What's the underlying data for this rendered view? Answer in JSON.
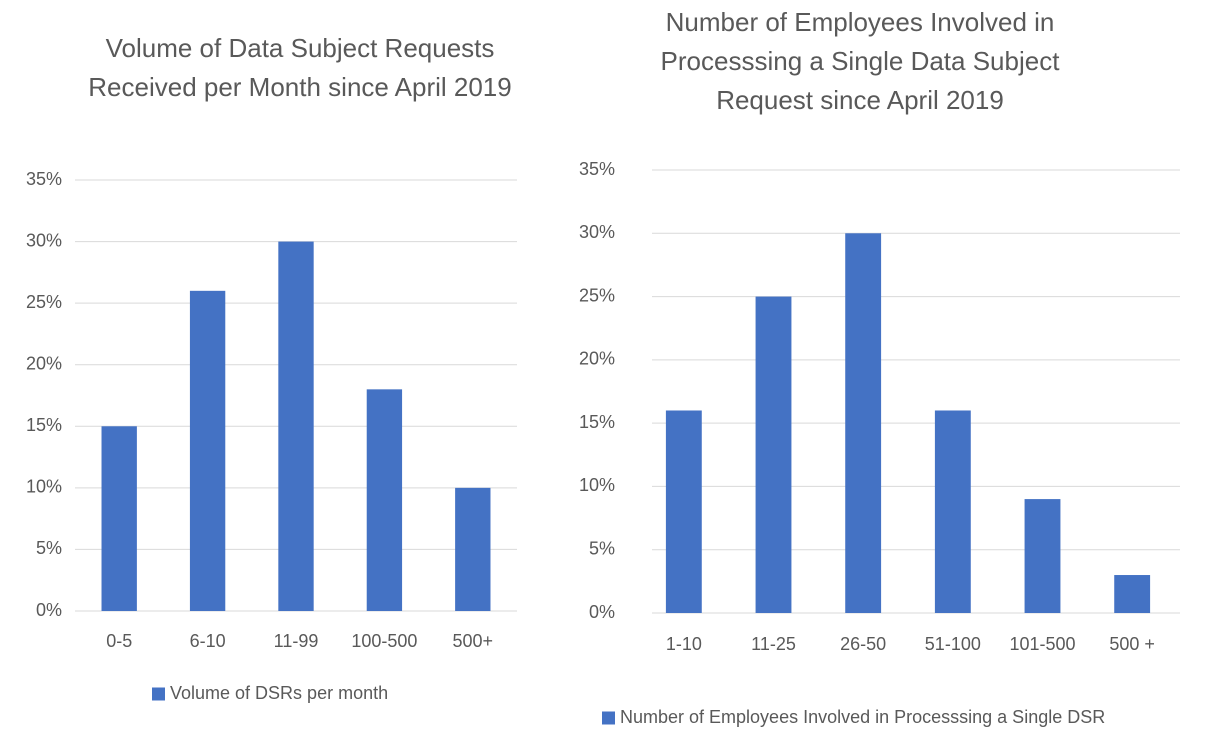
{
  "chart_data": [
    {
      "type": "bar",
      "title": "Volume of Data Subject Requests Received per Month since April 2019",
      "categories": [
        "0-5",
        "6-10",
        "11-99",
        "100-500",
        "500+"
      ],
      "series": [
        {
          "name": "Volume of DSRs per month",
          "color": "#4472c4",
          "values": [
            15,
            26,
            30,
            18,
            10
          ]
        }
      ],
      "ylim": [
        0,
        35
      ],
      "yticks": [
        {
          "value": 0,
          "label": "0%"
        },
        {
          "value": 5,
          "label": "5%"
        },
        {
          "value": 10,
          "label": "10%"
        },
        {
          "value": 15,
          "label": "15%"
        },
        {
          "value": 20,
          "label": "20%"
        },
        {
          "value": 25,
          "label": "25%"
        },
        {
          "value": 30,
          "label": "30%"
        },
        {
          "value": 35,
          "label": "35%"
        }
      ],
      "grid": true,
      "legend": "bottom"
    },
    {
      "type": "bar",
      "title": "Number of Employees Involved in Processsing a Single Data Subject Request since April 2019",
      "categories": [
        "1-10",
        "11-25",
        "26-50",
        "51-100",
        "101-500",
        "500 +"
      ],
      "series": [
        {
          "name": "Number of Employees Involved in Processsing a Single DSR",
          "color": "#4472c4",
          "values": [
            16,
            25,
            30,
            16,
            9,
            3
          ]
        }
      ],
      "ylim": [
        0,
        35
      ],
      "yticks": [
        {
          "value": 0,
          "label": "0%"
        },
        {
          "value": 5,
          "label": "5%"
        },
        {
          "value": 10,
          "label": "10%"
        },
        {
          "value": 15,
          "label": "15%"
        },
        {
          "value": 20,
          "label": "20%"
        },
        {
          "value": 25,
          "label": "25%"
        },
        {
          "value": 30,
          "label": "30%"
        },
        {
          "value": 35,
          "label": "35%"
        }
      ],
      "grid": true,
      "legend": "bottom"
    }
  ]
}
